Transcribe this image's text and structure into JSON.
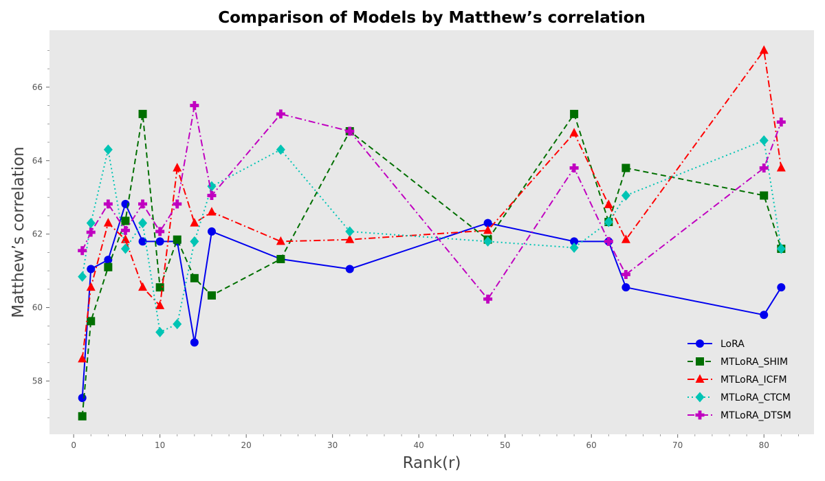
{
  "chart_data": {
    "type": "line",
    "title": "Comparison of Models by Matthew’s correlation",
    "xlabel": "Rank(r)",
    "ylabel": "Matthew’s correlation",
    "xlim": [
      -2.8,
      85.8
    ],
    "ylim": [
      56.55,
      67.55
    ],
    "xticks": [
      0,
      10,
      20,
      30,
      40,
      50,
      60,
      70,
      80
    ],
    "yticks": [
      58,
      60,
      62,
      64,
      66
    ],
    "grid": false,
    "legend_position": "lower-right",
    "x": [
      1,
      2,
      4,
      6,
      8,
      10,
      12,
      14,
      16,
      24,
      32,
      48,
      58,
      62,
      64,
      80,
      82
    ],
    "series": [
      {
        "name": "LoRA",
        "color": "#0000ee",
        "dash": "",
        "marker": "circle",
        "values": [
          57.54,
          61.05,
          61.3,
          62.82,
          61.8,
          61.8,
          61.8,
          59.05,
          62.07,
          61.32,
          61.05,
          62.3,
          61.8,
          61.8,
          60.55,
          59.8,
          60.55
        ]
      },
      {
        "name": "MTLoRA_SHIM",
        "color": "#006f00",
        "dash": "8,5",
        "marker": "square",
        "values": [
          57.04,
          59.63,
          61.1,
          62.36,
          65.27,
          60.55,
          61.85,
          60.8,
          60.33,
          61.32,
          64.8,
          61.85,
          65.27,
          62.33,
          63.8,
          63.05,
          61.6
        ]
      },
      {
        "name": "MTLoRA_ICFM",
        "color": "#ff0000",
        "dash": "10,4,2,4",
        "marker": "triangle",
        "values": [
          58.6,
          60.55,
          62.3,
          61.85,
          60.55,
          60.05,
          63.8,
          62.3,
          62.6,
          61.8,
          61.85,
          62.1,
          64.75,
          62.8,
          61.85,
          67.0,
          63.8
        ]
      },
      {
        "name": "MTLoRA_CTCM",
        "color": "#00c4b4",
        "dash": "2,4",
        "marker": "diamond",
        "values": [
          60.84,
          62.3,
          64.3,
          61.6,
          62.3,
          59.33,
          59.55,
          61.8,
          63.3,
          64.3,
          62.07,
          61.8,
          61.63,
          62.33,
          63.05,
          64.55,
          61.6
        ]
      },
      {
        "name": "MTLoRA_DTSM",
        "color": "#c000c0",
        "dash": "10,4,2,4",
        "marker": "plus",
        "values": [
          61.55,
          62.05,
          62.82,
          62.1,
          62.82,
          62.07,
          62.82,
          65.5,
          63.05,
          65.27,
          64.8,
          60.23,
          63.8,
          61.8,
          60.9,
          63.8,
          65.05
        ]
      }
    ]
  }
}
